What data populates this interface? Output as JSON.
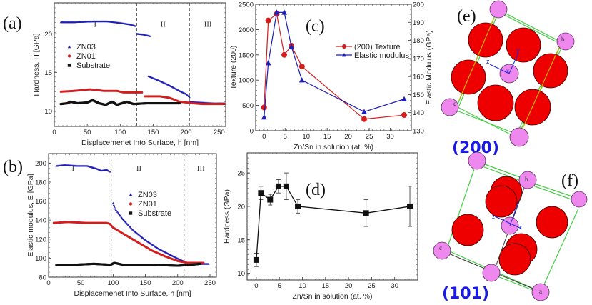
{
  "figure": {
    "panel_labels": [
      "(a)",
      "(b)",
      "(c)",
      "(d)",
      "(e)",
      "(f)"
    ],
    "plane_labels": [
      "(200)",
      "(101)"
    ],
    "crystal_axes": [
      "x",
      "y",
      "z"
    ],
    "crystal_corner_labels": [
      "a",
      "b",
      "c"
    ]
  },
  "chart_data": [
    {
      "id": "a",
      "type": "scatter",
      "title": "",
      "xlabel": "Displacemenet Into Surface, h [nm]",
      "ylabel": "Hardness, H [GPa]",
      "xlim": [
        0,
        260
      ],
      "ylim": [
        8,
        24
      ],
      "xticks": [
        0,
        50,
        100,
        150,
        200,
        250
      ],
      "yticks": [
        10,
        15,
        20
      ],
      "region_dividers": [
        125,
        205
      ],
      "region_labels": [
        {
          "text": "I",
          "x": 62,
          "y": 20.9
        },
        {
          "text": "II",
          "x": 165,
          "y": 20.9
        },
        {
          "text": "III",
          "x": 233,
          "y": 20.9
        }
      ],
      "legend": {
        "placement": "center-left",
        "entries": [
          "ZN03",
          "ZN01",
          "Substrate"
        ]
      },
      "series": [
        {
          "name": "ZN03",
          "color": "#1f1fb4",
          "marker": "triangle",
          "segments": [
            [
              [
                10,
                21.5
              ],
              [
                30,
                21.5
              ],
              [
                60,
                21.6
              ],
              [
                80,
                21.6
              ],
              [
                100,
                21.4
              ],
              [
                115,
                21.2
              ],
              [
                123,
                21.0
              ]
            ],
            [
              [
                125,
                20.0
              ],
              [
                135,
                19.9
              ],
              [
                145,
                19.7
              ]
            ],
            [
              [
                143,
                14.5
              ],
              [
                160,
                13.9
              ],
              [
                175,
                13.3
              ],
              [
                190,
                12.6
              ],
              [
                200,
                12.2
              ],
              [
                205,
                11.8
              ]
            ],
            [
              [
                205,
                11.2
              ],
              [
                220,
                11.1
              ],
              [
                240,
                11.0
              ],
              [
                258,
                11.0
              ]
            ]
          ]
        },
        {
          "name": "ZN01",
          "color": "#d41e1e",
          "marker": "circle",
          "segments": [
            [
              [
                10,
                12.5
              ],
              [
                30,
                12.6
              ],
              [
                55,
                12.8
              ],
              [
                75,
                12.6
              ],
              [
                95,
                12.6
              ],
              [
                105,
                12.4
              ],
              [
                120,
                12.4
              ],
              [
                133,
                12.4
              ]
            ],
            [
              [
                137,
                11.9
              ],
              [
                160,
                11.9
              ],
              [
                175,
                11.7
              ],
              [
                190,
                11.2
              ],
              [
                210,
                11.0
              ],
              [
                225,
                10.9
              ],
              [
                258,
                10.9
              ]
            ]
          ]
        },
        {
          "name": "Substrate",
          "color": "#111111",
          "marker": "square",
          "segments": [
            [
              [
                10,
                10.9
              ],
              [
                20,
                11.0
              ],
              [
                25,
                11.2
              ],
              [
                35,
                11.0
              ],
              [
                50,
                11.1
              ],
              [
                58,
                11.4
              ],
              [
                68,
                11.0
              ],
              [
                78,
                10.8
              ],
              [
                88,
                11.2
              ],
              [
                95,
                10.8
              ],
              [
                110,
                11.2
              ],
              [
                120,
                10.9
              ],
              [
                140,
                11.0
              ],
              [
                170,
                11.0
              ],
              [
                190,
                11.0
              ]
            ]
          ]
        }
      ]
    },
    {
      "id": "b",
      "type": "scatter",
      "title": "",
      "xlabel": "Displacemenet Into Surface, h [nm]",
      "ylabel": "Elastic modulus, E [GPa]",
      "xlim": [
        0,
        260
      ],
      "ylim": [
        80,
        210
      ],
      "xticks": [
        0,
        50,
        100,
        150,
        200,
        250
      ],
      "yticks": [
        80,
        100,
        120,
        140,
        160,
        180,
        200
      ],
      "region_dividers": [
        97,
        210
      ],
      "region_labels": [
        {
          "text": "I",
          "x": 38,
          "y": 192
        },
        {
          "text": "II",
          "x": 140,
          "y": 192
        },
        {
          "text": "III",
          "x": 236,
          "y": 192
        }
      ],
      "legend": {
        "placement": "center",
        "entries": [
          "ZN03",
          "ZN01",
          "Substrate"
        ]
      },
      "series": [
        {
          "name": "ZN03",
          "color": "#1f1fb4",
          "marker": "triangle",
          "segments": [
            [
              [
                12,
                197
              ],
              [
                25,
                198
              ],
              [
                45,
                197
              ],
              [
                60,
                197
              ],
              [
                75,
                194
              ],
              [
                82,
                192
              ],
              [
                90,
                193
              ],
              [
                95,
                191
              ]
            ],
            [
              [
                100,
                158
              ],
              [
                103,
                152
              ],
              [
                115,
                141
              ],
              [
                130,
                130
              ],
              [
                150,
                119
              ],
              [
                170,
                110
              ],
              [
                190,
                103
              ],
              [
                205,
                98
              ],
              [
                215,
                95
              ],
              [
                235,
                94
              ],
              [
                248,
                94
              ]
            ]
          ]
        },
        {
          "name": "ZN01",
          "color": "#d41e1e",
          "marker": "circle",
          "segments": [
            [
              [
                8,
                137
              ],
              [
                30,
                138
              ],
              [
                60,
                137
              ],
              [
                90,
                137
              ],
              [
                95,
                136
              ],
              [
                100,
                132
              ],
              [
                120,
                124
              ],
              [
                140,
                116
              ],
              [
                160,
                108
              ],
              [
                180,
                102
              ],
              [
                200,
                97
              ],
              [
                215,
                95
              ],
              [
                240,
                95
              ]
            ]
          ]
        },
        {
          "name": "Substrate",
          "color": "#111111",
          "marker": "square",
          "segments": [
            [
              [
                12,
                93
              ],
              [
                40,
                93
              ],
              [
                70,
                94
              ],
              [
                96,
                93
              ],
              [
                102,
                95
              ],
              [
                115,
                93
              ],
              [
                160,
                93
              ],
              [
                200,
                92
              ],
              [
                220,
                93
              ],
              [
                235,
                94
              ]
            ]
          ]
        }
      ]
    },
    {
      "id": "c",
      "type": "line",
      "title": "",
      "xlabel": "Zn/Sn in solution (at. %)",
      "ylabel": "Texture (200)",
      "ylabel_right": "Elastic Modulus (GPa)",
      "xlim": [
        -2,
        35
      ],
      "ylim": [
        0,
        2500
      ],
      "ylim_right": [
        130,
        200
      ],
      "xticks": [
        0,
        5,
        10,
        15,
        20,
        25,
        30
      ],
      "yticks": [
        0,
        500,
        1000,
        1500,
        2000,
        2500
      ],
      "yticks_right": [
        130,
        140,
        150,
        160,
        170,
        180,
        190,
        200
      ],
      "legend": {
        "placement": "center-right",
        "entries": [
          "(200) Texture",
          "Elastic modulus"
        ]
      },
      "series": [
        {
          "name": "(200) Texture",
          "color": "#d41e1e",
          "marker": "circle",
          "axis": "left",
          "x": [
            0,
            1,
            3,
            4.8,
            6.5,
            9,
            23.8,
            33.3
          ],
          "y": [
            460,
            2180,
            2310,
            1500,
            1680,
            1270,
            230,
            310
          ]
        },
        {
          "name": "Elastic modulus",
          "color": "#1f1fb4",
          "marker": "triangle",
          "axis": "right",
          "x": [
            0,
            1,
            3,
            4.8,
            6.5,
            9,
            23.8,
            33.3
          ],
          "y": [
            137.5,
            167.5,
            195.5,
            195.5,
            176.5,
            158,
            140.5,
            147.5
          ]
        }
      ]
    },
    {
      "id": "d",
      "type": "line",
      "title": "",
      "xlabel": "Zn/Sn in solution (at. %)",
      "ylabel": "Hardness (GPa)",
      "xlim": [
        -2,
        35
      ],
      "ylim": [
        9,
        28
      ],
      "xticks": [
        0,
        5,
        10,
        15,
        20,
        25,
        30
      ],
      "yticks": [
        10,
        15,
        20,
        25
      ],
      "series": [
        {
          "name": "Hardness",
          "color": "#111111",
          "marker": "square",
          "x": [
            0,
            1,
            3,
            4.8,
            6.5,
            9,
            23.8,
            33.3
          ],
          "y": [
            12,
            22,
            21,
            23,
            23,
            20,
            19,
            20
          ],
          "err": [
            1,
            1,
            0.8,
            1,
            2,
            1,
            2,
            3
          ]
        }
      ]
    }
  ]
}
